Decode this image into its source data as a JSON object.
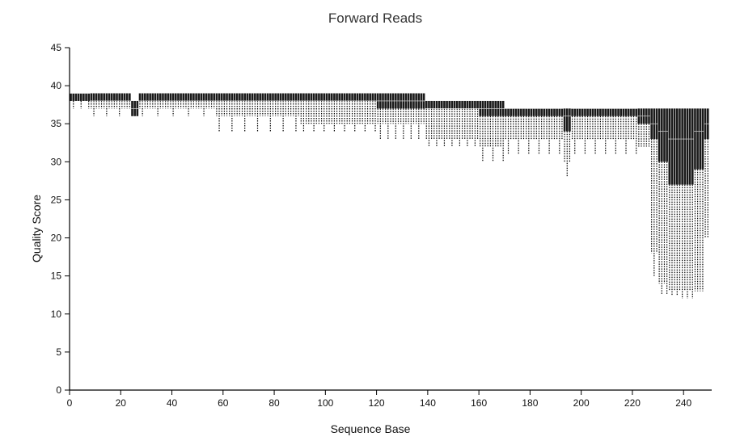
{
  "chart_data": {
    "type": "box",
    "title": "Forward Reads",
    "xlabel": "Sequence Base",
    "ylabel": "Quality Score",
    "xlim": [
      0,
      251
    ],
    "ylim": [
      0,
      45
    ],
    "xticks": [
      0,
      20,
      40,
      60,
      80,
      100,
      120,
      140,
      160,
      180,
      200,
      220,
      240
    ],
    "yticks": [
      0,
      5,
      10,
      15,
      20,
      25,
      30,
      35,
      40,
      45
    ],
    "grid": false,
    "legend": "none",
    "box_color": "#1a1a1a",
    "whisker_style": "dotted",
    "segments": [
      {
        "from": 1,
        "to": 8,
        "q1": 38,
        "median": 39,
        "q3": 39,
        "whisker_low": 38,
        "dip_every": 3,
        "dip_value": 37
      },
      {
        "from": 9,
        "to": 24,
        "q1": 38,
        "median": 38,
        "q3": 39,
        "whisker_low": 37,
        "dip_every": 5,
        "dip_value": 36
      },
      {
        "from": 25,
        "to": 27,
        "q1": 36,
        "median": 37,
        "q3": 38,
        "whisker_low": 36,
        "dip_every": 0,
        "dip_value": 36
      },
      {
        "from": 28,
        "to": 57,
        "q1": 38,
        "median": 38,
        "q3": 39,
        "whisker_low": 37,
        "dip_every": 6,
        "dip_value": 36
      },
      {
        "from": 58,
        "to": 90,
        "q1": 38,
        "median": 38,
        "q3": 39,
        "whisker_low": 36,
        "dip_every": 5,
        "dip_value": 34
      },
      {
        "from": 91,
        "to": 120,
        "q1": 38,
        "median": 38,
        "q3": 39,
        "whisker_low": 35,
        "dip_every": 4,
        "dip_value": 34
      },
      {
        "from": 121,
        "to": 139,
        "q1": 37,
        "median": 38,
        "q3": 39,
        "whisker_low": 35,
        "dip_every": 3,
        "dip_value": 33
      },
      {
        "from": 140,
        "to": 160,
        "q1": 37,
        "median": 37,
        "q3": 38,
        "whisker_low": 33,
        "dip_every": 3,
        "dip_value": 32
      },
      {
        "from": 161,
        "to": 170,
        "q1": 36,
        "median": 37,
        "q3": 38,
        "whisker_low": 32,
        "dip_every": 4,
        "dip_value": 30
      },
      {
        "from": 171,
        "to": 193,
        "q1": 36,
        "median": 37,
        "q3": 37,
        "whisker_low": 33,
        "dip_every": 4,
        "dip_value": 31
      },
      {
        "from": 194,
        "to": 196,
        "q1": 34,
        "median": 36,
        "q3": 37,
        "whisker_low": 30,
        "dip_every": 2,
        "dip_value": 28
      },
      {
        "from": 197,
        "to": 222,
        "q1": 36,
        "median": 37,
        "q3": 37,
        "whisker_low": 33,
        "dip_every": 4,
        "dip_value": 31
      },
      {
        "from": 223,
        "to": 227,
        "q1": 35,
        "median": 36,
        "q3": 37,
        "whisker_low": 32,
        "dip_every": 0,
        "dip_value": 32
      },
      {
        "from": 228,
        "to": 230,
        "q1": 33,
        "median": 35,
        "q3": 37,
        "whisker_low": 18,
        "dip_every": 2,
        "dip_value": 15
      },
      {
        "from": 231,
        "to": 234,
        "q1": 30,
        "median": 34,
        "q3": 37,
        "whisker_low": 14,
        "dip_every": 2,
        "dip_value": 12.5
      },
      {
        "from": 235,
        "to": 238,
        "q1": 27,
        "median": 33,
        "q3": 37,
        "whisker_low": 13,
        "dip_every": 2,
        "dip_value": 12.5
      },
      {
        "from": 239,
        "to": 244,
        "q1": 27,
        "median": 33,
        "q3": 37,
        "whisker_low": 13,
        "dip_every": 2,
        "dip_value": 12
      },
      {
        "from": 245,
        "to": 248,
        "q1": 29,
        "median": 34,
        "q3": 37,
        "whisker_low": 13,
        "dip_every": 2,
        "dip_value": 13
      },
      {
        "from": 249,
        "to": 250,
        "q1": 33,
        "median": 35,
        "q3": 37,
        "whisker_low": 20,
        "dip_every": 0,
        "dip_value": 20
      }
    ]
  }
}
